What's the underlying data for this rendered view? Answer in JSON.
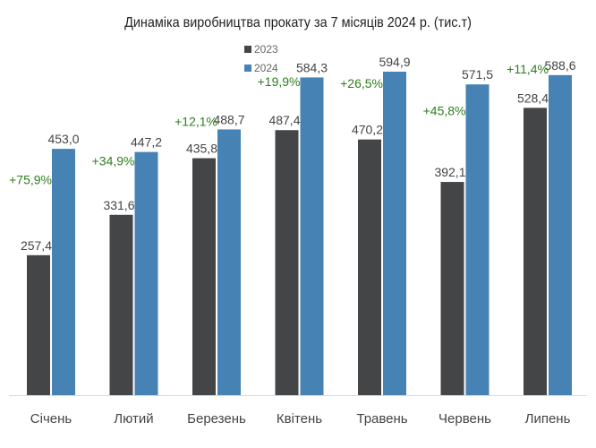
{
  "chart_data": {
    "type": "bar",
    "title": "Динаміка виробництва прокату за 7 місяців 2024 р. (тис.т)",
    "categories": [
      "Січень",
      "Лютий",
      "Березень",
      "Квітень",
      "Травень",
      "Червень",
      "Липень"
    ],
    "series": [
      {
        "name": "2023",
        "color": "#444547",
        "values": [
          257.4,
          331.6,
          435.8,
          487.4,
          470.2,
          392.1,
          528.4
        ],
        "labels": [
          "257,4",
          "331,6",
          "435,8",
          "487,4",
          "470,2",
          "392,1",
          "528,4"
        ]
      },
      {
        "name": "2024",
        "color": "#4682b4",
        "values": [
          453.0,
          447.2,
          488.7,
          584.3,
          594.9,
          571.5,
          588.6
        ],
        "labels": [
          "453,0",
          "447,2",
          "488,7",
          "584,3",
          "594,9",
          "571,5",
          "588,6"
        ]
      }
    ],
    "growth_labels": [
      "+75,9%",
      "+34,9%",
      "+12,1%",
      "+19,9%",
      "+26,5%",
      "+45,8%",
      "+11,4%"
    ],
    "growth_color": "#2e7d1e",
    "ylim": [
      0,
      600
    ],
    "legend": "top-center",
    "grid": false,
    "xlabel": "",
    "ylabel": ""
  }
}
